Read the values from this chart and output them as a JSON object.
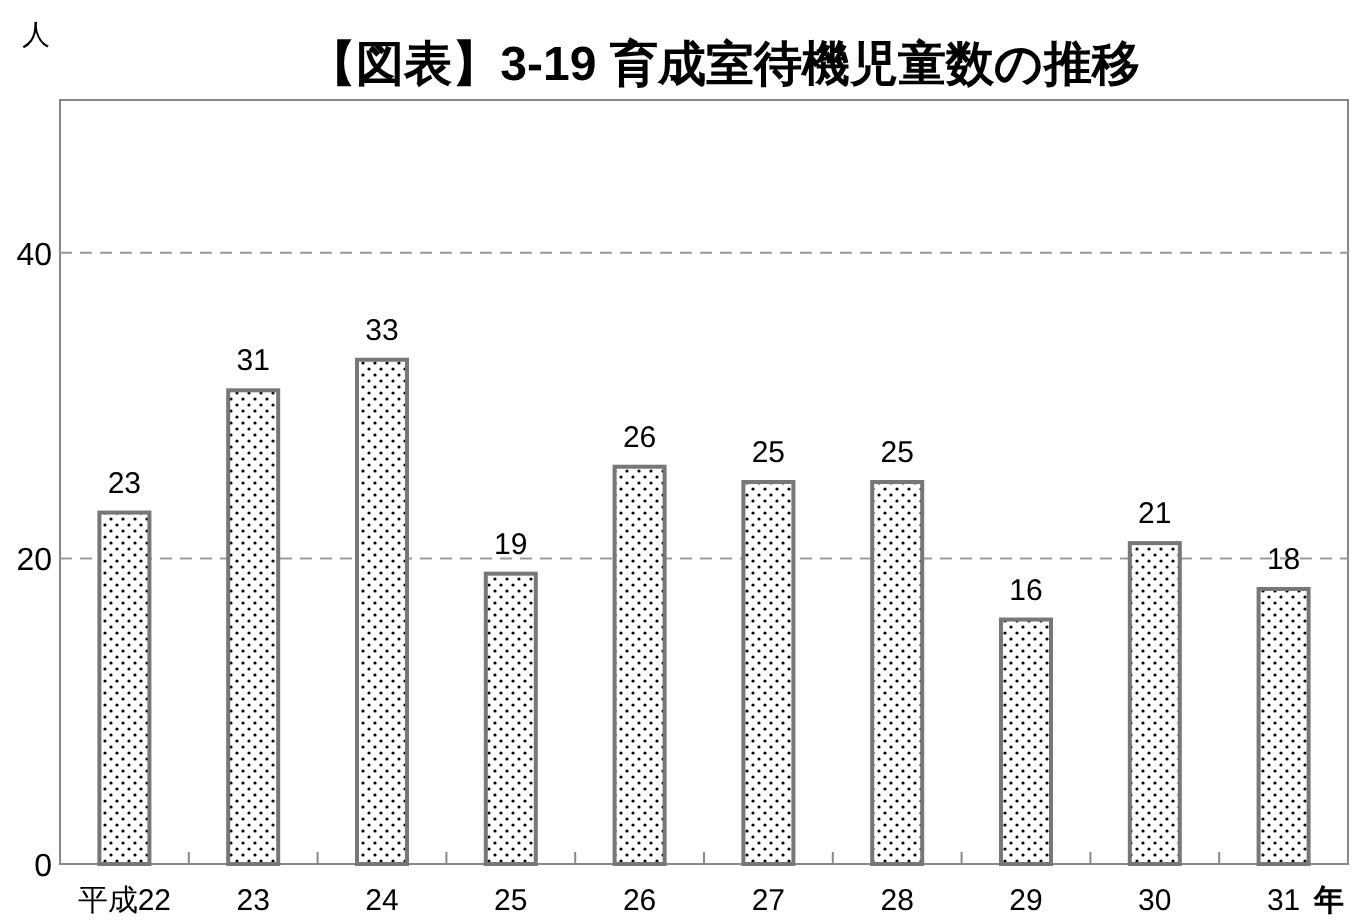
{
  "chart_data": {
    "type": "bar",
    "title": "【図表】3-19 育成室待機児童数の推移",
    "ylabel": "人",
    "xlabel": "年",
    "categories": [
      "平成22",
      "23",
      "24",
      "25",
      "26",
      "27",
      "28",
      "29",
      "30",
      "31"
    ],
    "values": [
      23,
      31,
      33,
      19,
      26,
      25,
      25,
      16,
      21,
      18
    ],
    "color": "#777777",
    "ylim": [
      0,
      50
    ],
    "yticks": [
      0,
      20,
      40
    ],
    "grid": "y",
    "data_labels": true
  }
}
